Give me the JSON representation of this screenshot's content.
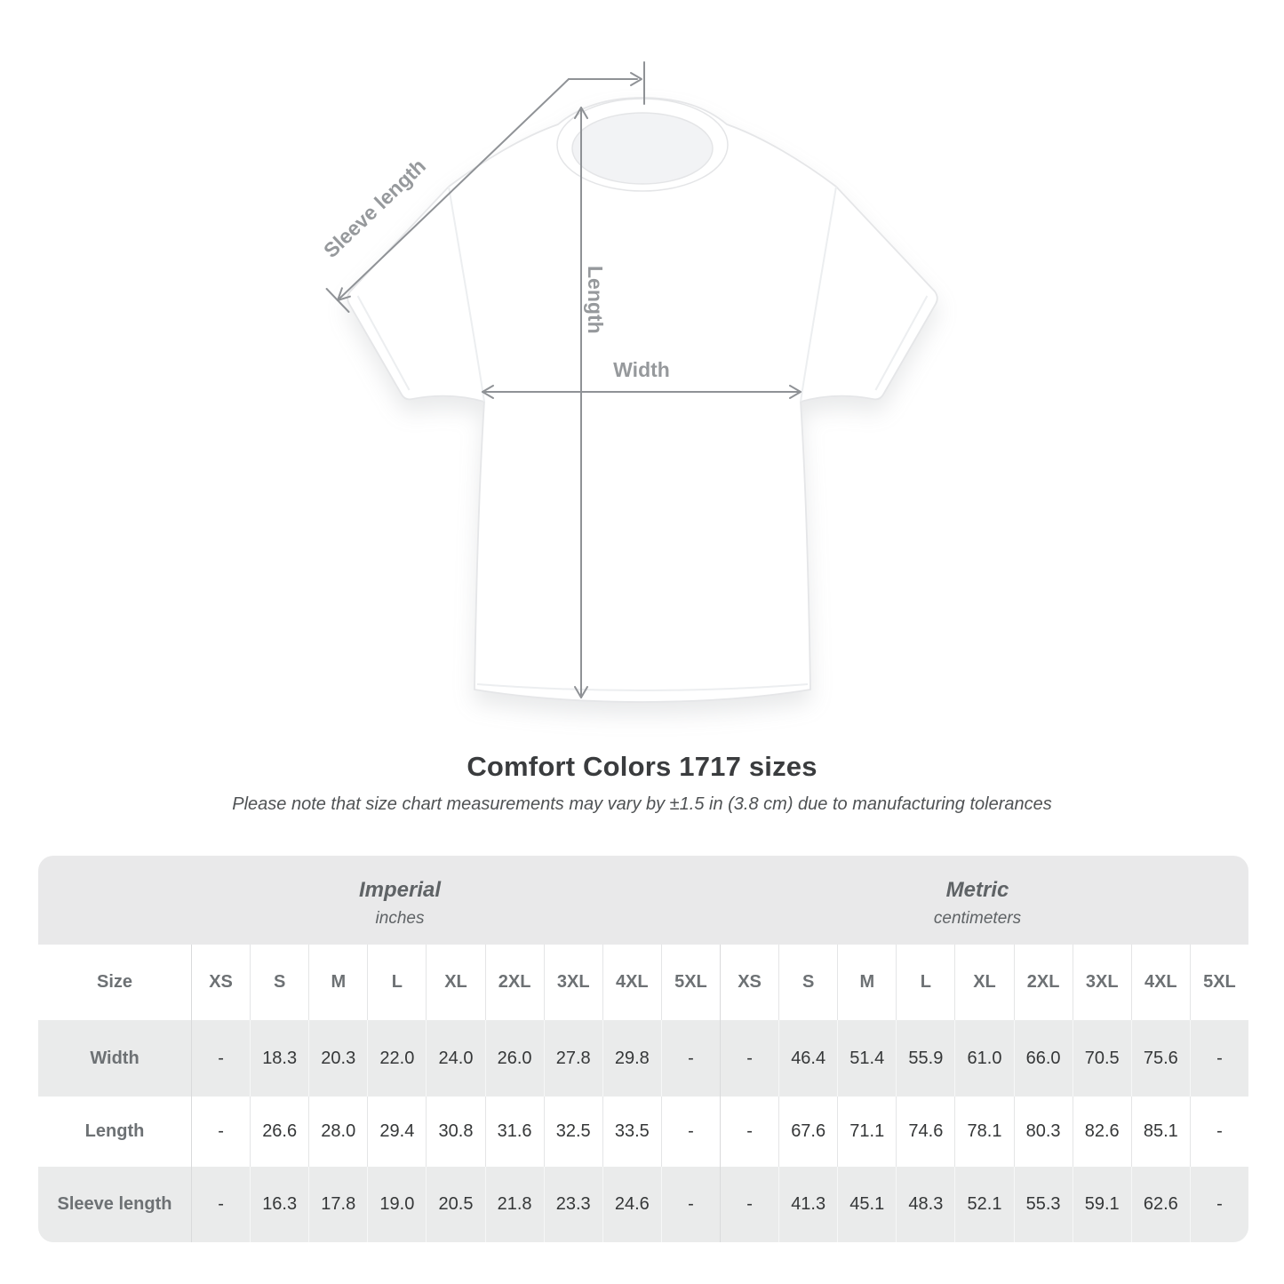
{
  "colors": {
    "band_gray": "#e9e9ea",
    "row_gray": "#eaebeb",
    "row_white": "#ffffff",
    "header_text": "#6d7174",
    "value_text": "#353738",
    "title_text": "#3a3c3e",
    "note_text": "#4f5254",
    "diagram_line": "#8f9296",
    "diagram_label": "#96999c"
  },
  "diagram": {
    "labels": {
      "sleeve": "Sleeve length",
      "length": "Length",
      "width": "Width"
    }
  },
  "chart_data": {
    "type": "table",
    "title": "Comfort Colors 1717 sizes",
    "note": "Please note that size chart measurements may vary by ±1.5 in (3.8 cm) due to manufacturing tolerances",
    "size_label": "Size",
    "unit_groups": [
      {
        "name": "Imperial",
        "unit": "inches"
      },
      {
        "name": "Metric",
        "unit": "centimeters"
      }
    ],
    "size_columns": [
      "XS",
      "S",
      "M",
      "L",
      "XL",
      "2XL",
      "3XL",
      "4XL",
      "5XL"
    ],
    "rows": [
      {
        "label": "Width",
        "imperial": [
          "-",
          "18.3",
          "20.3",
          "22.0",
          "24.0",
          "26.0",
          "27.8",
          "29.8",
          "-"
        ],
        "metric": [
          "-",
          "46.4",
          "51.4",
          "55.9",
          "61.0",
          "66.0",
          "70.5",
          "75.6",
          "-"
        ]
      },
      {
        "label": "Length",
        "imperial": [
          "-",
          "26.6",
          "28.0",
          "29.4",
          "30.8",
          "31.6",
          "32.5",
          "33.5",
          "-"
        ],
        "metric": [
          "-",
          "67.6",
          "71.1",
          "74.6",
          "78.1",
          "80.3",
          "82.6",
          "85.1",
          "-"
        ]
      },
      {
        "label": "Sleeve length",
        "imperial": [
          "-",
          "16.3",
          "17.8",
          "19.0",
          "20.5",
          "21.8",
          "23.3",
          "24.6",
          "-"
        ],
        "metric": [
          "-",
          "41.3",
          "45.1",
          "48.3",
          "52.1",
          "55.3",
          "59.1",
          "62.6",
          "-"
        ]
      }
    ]
  }
}
